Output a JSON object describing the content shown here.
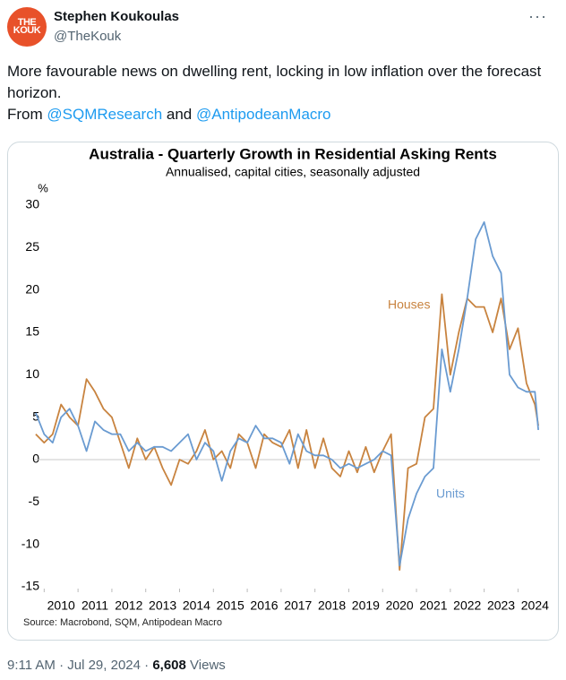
{
  "author": {
    "name": "Stephen Koukoulas",
    "handle": "@TheKouk",
    "avatar_label": "THE KOUK"
  },
  "tweet": {
    "text": "More favourable news on dwelling rent, locking in low inflation over the forecast horizon.",
    "from": "From",
    "link1": "@SQMResearch",
    "and": "and",
    "link2": "@AntipodeanMacro"
  },
  "footer": {
    "time": "9:11 AM · Jul 29, 2024",
    "separator": "·",
    "views": "6,608",
    "views_label": "Views"
  },
  "chart_data": {
    "type": "line",
    "title": "Australia - Quarterly Growth in Residential Asking Rents",
    "subtitle": "Annualised, capital cities, seasonally adjusted",
    "y_label": "%",
    "source": "Source: Macrobond, SQM, Antipodean Macro",
    "x": [
      2009.75,
      2010,
      2010.25,
      2010.5,
      2010.75,
      2011,
      2011.25,
      2011.5,
      2011.75,
      2012,
      2012.25,
      2012.5,
      2012.75,
      2013,
      2013.25,
      2013.5,
      2013.75,
      2014,
      2014.25,
      2014.5,
      2014.75,
      2015,
      2015.25,
      2015.5,
      2015.75,
      2016,
      2016.25,
      2016.5,
      2016.75,
      2017,
      2017.25,
      2017.5,
      2017.75,
      2018,
      2018.25,
      2018.5,
      2018.75,
      2019,
      2019.25,
      2019.5,
      2019.75,
      2020,
      2020.25,
      2020.5,
      2020.75,
      2021,
      2021.25,
      2021.5,
      2021.75,
      2022,
      2022.25,
      2022.5,
      2022.75,
      2023,
      2023.25,
      2023.5,
      2023.75,
      2024,
      2024.25,
      2024.5,
      2024.6
    ],
    "series": [
      {
        "name": "Houses",
        "color": "#c8833f",
        "values": [
          3,
          2,
          3,
          6.5,
          5,
          4,
          9.5,
          8,
          6,
          5,
          2,
          -1,
          2.5,
          0,
          1.5,
          -1,
          -3,
          0,
          -0.5,
          1,
          3.5,
          0,
          1,
          -1,
          3,
          2,
          -1,
          3,
          2,
          1.5,
          3.5,
          -1,
          3.5,
          -1,
          2.5,
          -1,
          -2,
          1,
          -1.5,
          1.5,
          -1.5,
          1,
          3,
          -13,
          -1,
          -0.5,
          5,
          6,
          19.5,
          10,
          15,
          19,
          18,
          18,
          15,
          19,
          13,
          15.5,
          9,
          6.5,
          4
        ]
      },
      {
        "name": "Units",
        "color": "#6a9bd1",
        "values": [
          5.5,
          3,
          2,
          5,
          6,
          4,
          1,
          4.5,
          3.5,
          3,
          3,
          1,
          2,
          1,
          1.5,
          1.5,
          1,
          2,
          3,
          0,
          2,
          1,
          -2.5,
          1,
          2.5,
          2,
          4,
          2.5,
          2.5,
          2,
          -0.5,
          3,
          1,
          0.5,
          0.5,
          0,
          -1,
          -0.5,
          -1,
          -0.5,
          0,
          1,
          0.5,
          -12.5,
          -7,
          -4,
          -2,
          -1,
          13,
          8,
          13,
          19,
          26,
          28,
          24,
          22,
          10,
          8.5,
          8,
          8,
          3.5
        ]
      }
    ],
    "xlim": [
      2009.7,
      2024.65
    ],
    "xticks": [
      2010,
      2011,
      2012,
      2013,
      2014,
      2015,
      2016,
      2017,
      2018,
      2019,
      2020,
      2021,
      2022,
      2023,
      2024
    ],
    "ylim": [
      -15,
      30
    ],
    "yticks": [
      -15,
      -10,
      -5,
      0,
      5,
      10,
      15,
      20,
      25,
      30
    ],
    "grid": false
  }
}
